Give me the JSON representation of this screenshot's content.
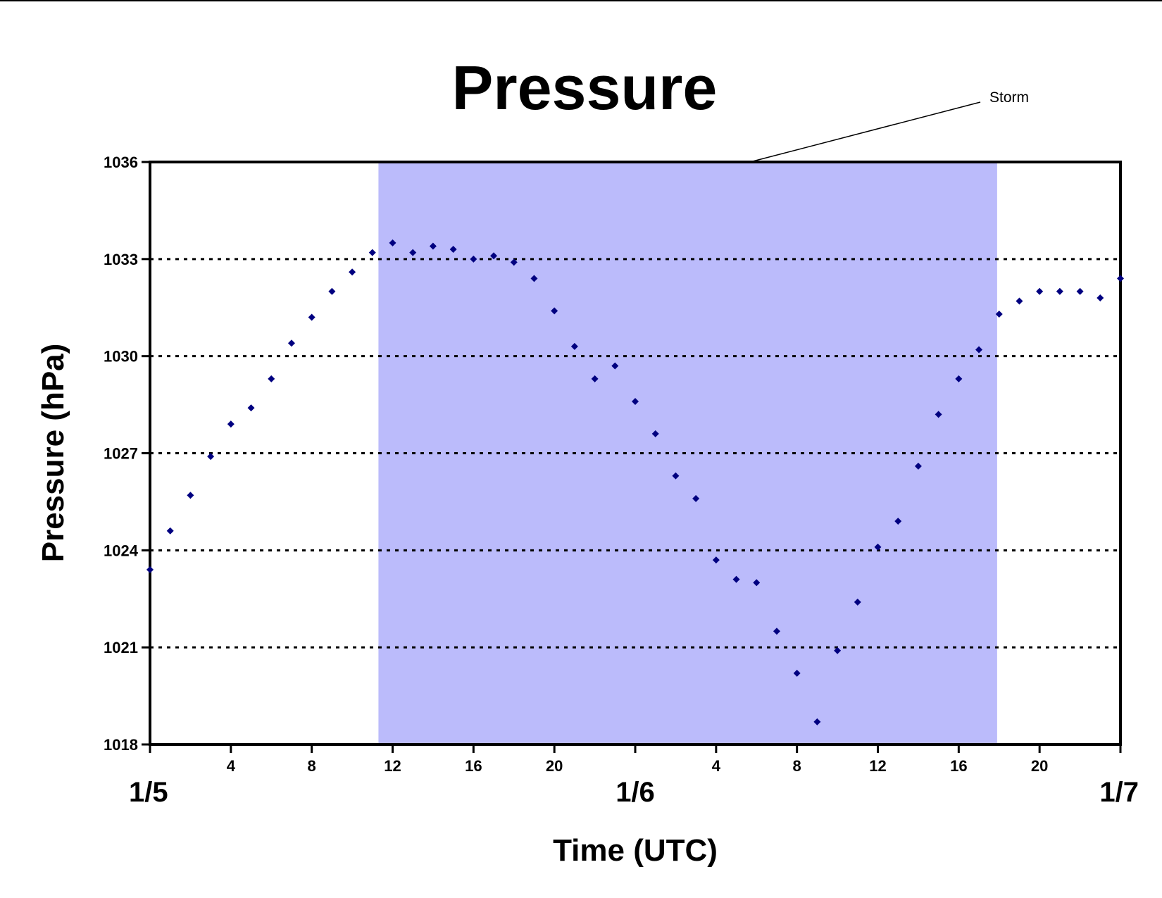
{
  "chart_data": {
    "type": "scatter",
    "title": "Pressure",
    "xlabel": "Time (UTC)",
    "ylabel": "Pressure (hPa)",
    "ylim": [
      1018,
      1036
    ],
    "yticks": [
      "1018",
      "1021",
      "1024",
      "1027",
      "1030",
      "1033",
      "1036"
    ],
    "grid": "horizontal dotted",
    "x_unit": "hours since 1/5 00 UTC",
    "xlim": [
      0,
      48
    ],
    "hour_tick_labels": [
      "4",
      "8",
      "12",
      "16",
      "20",
      "4",
      "8",
      "12",
      "16",
      "20"
    ],
    "date_labels": [
      "1/5",
      "1/6",
      "1/7"
    ],
    "shaded_region": {
      "label": "Storm",
      "x_start": 11.3,
      "x_end": 41.9,
      "color": "#bbbbfb"
    },
    "marker_color": "#000080",
    "series": [
      {
        "x": [
          0,
          1,
          2,
          3,
          4,
          5,
          6,
          7,
          8,
          9,
          10,
          11,
          12,
          13,
          14,
          15,
          16,
          17,
          18,
          19,
          20,
          21,
          22,
          23,
          24,
          25,
          26,
          27,
          28,
          29,
          30,
          31,
          32,
          33,
          34,
          35,
          36,
          37,
          38,
          39,
          40,
          41,
          42,
          43,
          44,
          45,
          46,
          47,
          48
        ],
        "values": [
          1023.4,
          1024.6,
          1025.7,
          1026.9,
          1027.9,
          1028.4,
          1029.3,
          1030.4,
          1031.2,
          1032.0,
          1032.6,
          1033.2,
          1033.5,
          1033.2,
          1033.4,
          1033.3,
          1033.0,
          1033.1,
          1032.9,
          1032.4,
          1031.4,
          1030.3,
          1029.3,
          1029.7,
          1028.6,
          1027.6,
          1026.3,
          1025.6,
          1023.7,
          1023.1,
          1023.0,
          1021.5,
          1020.2,
          1018.7,
          1020.9,
          1022.4,
          1024.1,
          1024.9,
          1026.6,
          1028.2,
          1029.3,
          1030.2,
          1031.3,
          1031.7,
          1032.0,
          1032.0,
          1032.0,
          1031.8,
          1032.4
        ]
      }
    ]
  }
}
